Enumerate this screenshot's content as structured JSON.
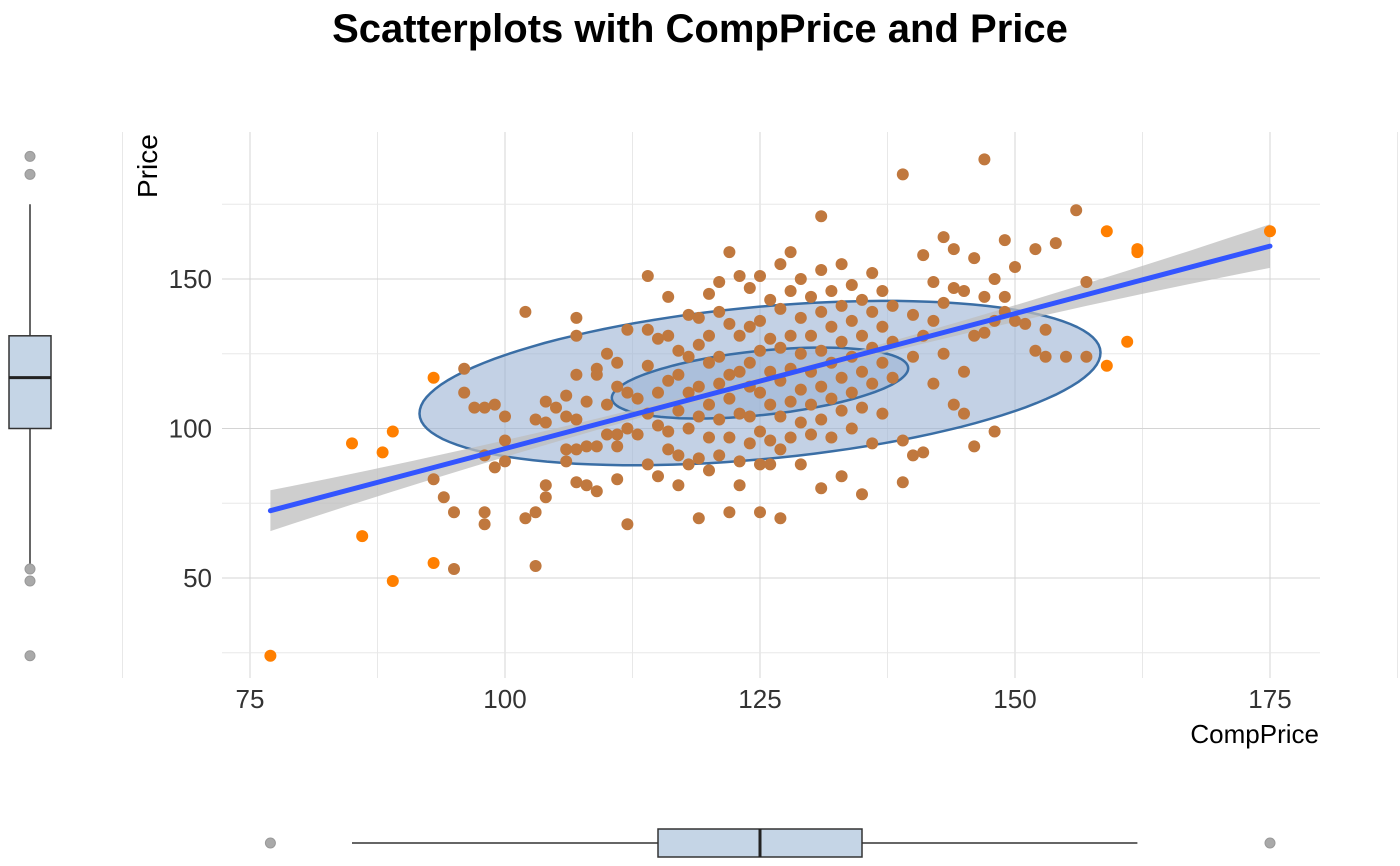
{
  "chart_data": {
    "type": "scatter",
    "title": "Scatterplots with CompPrice and Price",
    "xlabel": "CompPrice",
    "ylabel": "Price",
    "xlim": [
      72,
      180
    ],
    "ylim": [
      20,
      200
    ],
    "x_ticks": [
      75,
      100,
      125,
      150,
      175
    ],
    "y_ticks": [
      50,
      100,
      150
    ],
    "grid": true,
    "colors": {
      "points": "#FF7F00",
      "points_inside": "#C0783E",
      "fit_line": "#3355FF",
      "confidence_band": "#BEBEBE",
      "ellipse_fill": "#9BB3D3",
      "ellipse_stroke": "#3A6EA5",
      "boxplot_fill": "#C5D5E6",
      "outlier": "#A9A9A9"
    },
    "series": [
      {
        "points": [
          [
            77,
            24
          ],
          [
            85,
            95
          ],
          [
            86,
            64
          ],
          [
            88,
            92
          ],
          [
            89,
            99
          ],
          [
            89,
            49
          ],
          [
            93,
            117
          ],
          [
            93,
            55
          ],
          [
            93,
            83
          ],
          [
            94,
            77
          ],
          [
            95,
            72
          ],
          [
            95,
            53
          ],
          [
            96,
            120
          ],
          [
            96,
            112
          ],
          [
            97,
            107
          ],
          [
            98,
            107
          ],
          [
            98,
            91
          ],
          [
            98,
            72
          ],
          [
            98,
            68
          ],
          [
            99,
            108
          ],
          [
            99,
            87
          ],
          [
            100,
            104
          ],
          [
            100,
            96
          ],
          [
            100,
            89
          ],
          [
            102,
            139
          ],
          [
            102,
            70
          ],
          [
            103,
            103
          ],
          [
            103,
            72
          ],
          [
            103,
            54
          ],
          [
            104,
            109
          ],
          [
            104,
            102
          ],
          [
            104,
            81
          ],
          [
            104,
            77
          ],
          [
            105,
            107
          ],
          [
            106,
            111
          ],
          [
            106,
            104
          ],
          [
            106,
            89
          ],
          [
            106,
            93
          ],
          [
            107,
            137
          ],
          [
            107,
            131
          ],
          [
            107,
            118
          ],
          [
            107,
            103
          ],
          [
            107,
            93
          ],
          [
            107,
            82
          ],
          [
            108,
            109
          ],
          [
            108,
            94
          ],
          [
            108,
            81
          ],
          [
            109,
            120
          ],
          [
            109,
            118
          ],
          [
            109,
            94
          ],
          [
            109,
            79
          ],
          [
            110,
            125
          ],
          [
            110,
            108
          ],
          [
            110,
            98
          ],
          [
            111,
            122
          ],
          [
            111,
            114
          ],
          [
            111,
            98
          ],
          [
            111,
            94
          ],
          [
            111,
            83
          ],
          [
            112,
            133
          ],
          [
            112,
            112
          ],
          [
            112,
            100
          ],
          [
            112,
            68
          ],
          [
            113,
            110
          ],
          [
            113,
            98
          ],
          [
            114,
            151
          ],
          [
            114,
            133
          ],
          [
            114,
            121
          ],
          [
            114,
            105
          ],
          [
            114,
            88
          ],
          [
            115,
            130
          ],
          [
            115,
            112
          ],
          [
            115,
            101
          ],
          [
            115,
            84
          ],
          [
            116,
            144
          ],
          [
            116,
            131
          ],
          [
            116,
            116
          ],
          [
            116,
            99
          ],
          [
            116,
            93
          ],
          [
            117,
            126
          ],
          [
            117,
            118
          ],
          [
            117,
            106
          ],
          [
            117,
            91
          ],
          [
            117,
            81
          ],
          [
            118,
            138
          ],
          [
            118,
            124
          ],
          [
            118,
            112
          ],
          [
            118,
            100
          ],
          [
            118,
            88
          ],
          [
            119,
            137
          ],
          [
            119,
            128
          ],
          [
            119,
            114
          ],
          [
            119,
            104
          ],
          [
            119,
            90
          ],
          [
            119,
            70
          ],
          [
            120,
            145
          ],
          [
            120,
            131
          ],
          [
            120,
            122
          ],
          [
            120,
            108
          ],
          [
            120,
            97
          ],
          [
            120,
            86
          ],
          [
            121,
            149
          ],
          [
            121,
            139
          ],
          [
            121,
            124
          ],
          [
            121,
            115
          ],
          [
            121,
            103
          ],
          [
            121,
            91
          ],
          [
            122,
            159
          ],
          [
            122,
            135
          ],
          [
            122,
            118
          ],
          [
            122,
            110
          ],
          [
            122,
            97
          ],
          [
            122,
            72
          ],
          [
            123,
            151
          ],
          [
            123,
            131
          ],
          [
            123,
            119
          ],
          [
            123,
            105
          ],
          [
            123,
            89
          ],
          [
            123,
            81
          ],
          [
            124,
            147
          ],
          [
            124,
            134
          ],
          [
            124,
            122
          ],
          [
            124,
            114
          ],
          [
            124,
            104
          ],
          [
            124,
            95
          ],
          [
            125,
            151
          ],
          [
            125,
            136
          ],
          [
            125,
            126
          ],
          [
            125,
            112
          ],
          [
            125,
            99
          ],
          [
            125,
            88
          ],
          [
            125,
            72
          ],
          [
            126,
            143
          ],
          [
            126,
            130
          ],
          [
            126,
            119
          ],
          [
            126,
            108
          ],
          [
            126,
            96
          ],
          [
            126,
            88
          ],
          [
            127,
            155
          ],
          [
            127,
            140
          ],
          [
            127,
            127
          ],
          [
            127,
            116
          ],
          [
            127,
            104
          ],
          [
            127,
            93
          ],
          [
            127,
            70
          ],
          [
            128,
            159
          ],
          [
            128,
            146
          ],
          [
            128,
            131
          ],
          [
            128,
            120
          ],
          [
            128,
            109
          ],
          [
            128,
            97
          ],
          [
            129,
            150
          ],
          [
            129,
            137
          ],
          [
            129,
            125
          ],
          [
            129,
            113
          ],
          [
            129,
            102
          ],
          [
            129,
            88
          ],
          [
            130,
            144
          ],
          [
            130,
            131
          ],
          [
            130,
            119
          ],
          [
            130,
            108
          ],
          [
            130,
            98
          ],
          [
            131,
            171
          ],
          [
            131,
            153
          ],
          [
            131,
            139
          ],
          [
            131,
            126
          ],
          [
            131,
            114
          ],
          [
            131,
            103
          ],
          [
            131,
            80
          ],
          [
            132,
            146
          ],
          [
            132,
            134
          ],
          [
            132,
            122
          ],
          [
            132,
            110
          ],
          [
            132,
            97
          ],
          [
            133,
            155
          ],
          [
            133,
            141
          ],
          [
            133,
            129
          ],
          [
            133,
            117
          ],
          [
            133,
            106
          ],
          [
            133,
            84
          ],
          [
            134,
            148
          ],
          [
            134,
            136
          ],
          [
            134,
            124
          ],
          [
            134,
            112
          ],
          [
            134,
            100
          ],
          [
            135,
            143
          ],
          [
            135,
            131
          ],
          [
            135,
            119
          ],
          [
            135,
            107
          ],
          [
            135,
            78
          ],
          [
            136,
            152
          ],
          [
            136,
            139
          ],
          [
            136,
            127
          ],
          [
            136,
            115
          ],
          [
            136,
            95
          ],
          [
            137,
            146
          ],
          [
            137,
            134
          ],
          [
            137,
            122
          ],
          [
            137,
            105
          ],
          [
            138,
            141
          ],
          [
            138,
            129
          ],
          [
            138,
            117
          ],
          [
            139,
            185
          ],
          [
            139,
            96
          ],
          [
            139,
            82
          ],
          [
            140,
            138
          ],
          [
            140,
            124
          ],
          [
            140,
            91
          ],
          [
            141,
            158
          ],
          [
            141,
            131
          ],
          [
            141,
            92
          ],
          [
            142,
            149
          ],
          [
            142,
            136
          ],
          [
            142,
            115
          ],
          [
            143,
            164
          ],
          [
            143,
            142
          ],
          [
            143,
            125
          ],
          [
            144,
            160
          ],
          [
            144,
            147
          ],
          [
            144,
            108
          ],
          [
            145,
            146
          ],
          [
            145,
            119
          ],
          [
            145,
            105
          ],
          [
            146,
            157
          ],
          [
            146,
            131
          ],
          [
            146,
            94
          ],
          [
            147,
            190
          ],
          [
            147,
            144
          ],
          [
            147,
            132
          ],
          [
            148,
            150
          ],
          [
            148,
            136
          ],
          [
            148,
            99
          ],
          [
            149,
            163
          ],
          [
            149,
            139
          ],
          [
            149,
            144
          ],
          [
            150,
            154
          ],
          [
            150,
            136
          ],
          [
            151,
            135
          ],
          [
            152,
            160
          ],
          [
            152,
            126
          ],
          [
            153,
            133
          ],
          [
            153,
            124
          ],
          [
            154,
            162
          ],
          [
            155,
            124
          ],
          [
            156,
            173
          ],
          [
            157,
            149
          ],
          [
            157,
            124
          ],
          [
            159,
            166
          ],
          [
            159,
            121
          ],
          [
            161,
            129
          ],
          [
            162,
            160
          ],
          [
            162,
            159
          ],
          [
            175,
            166
          ]
        ]
      }
    ],
    "fit_line": {
      "x": [
        77,
        175
      ],
      "y": [
        72.5,
        161
      ]
    },
    "ellipses": [
      {
        "level": "outer",
        "center": [
          125,
          115.2
        ],
        "semi_axes": [
          36.3,
          23.5
        ],
        "angle_deg": 31
      },
      {
        "level": "inner",
        "center": [
          125,
          115.2
        ],
        "semi_axes": [
          16.0,
          9.8
        ],
        "angle_deg": 32
      }
    ],
    "marginal_boxplots": {
      "y_Price": {
        "min": 53,
        "q1": 100,
        "median": 117,
        "q3": 131,
        "max": 175,
        "outliers": [
          191,
          185,
          53,
          49,
          24
        ]
      },
      "x_CompPrice": {
        "min": 85,
        "q1": 115,
        "median": 125,
        "q3": 135,
        "max": 162,
        "outliers": [
          77,
          175
        ]
      }
    }
  }
}
